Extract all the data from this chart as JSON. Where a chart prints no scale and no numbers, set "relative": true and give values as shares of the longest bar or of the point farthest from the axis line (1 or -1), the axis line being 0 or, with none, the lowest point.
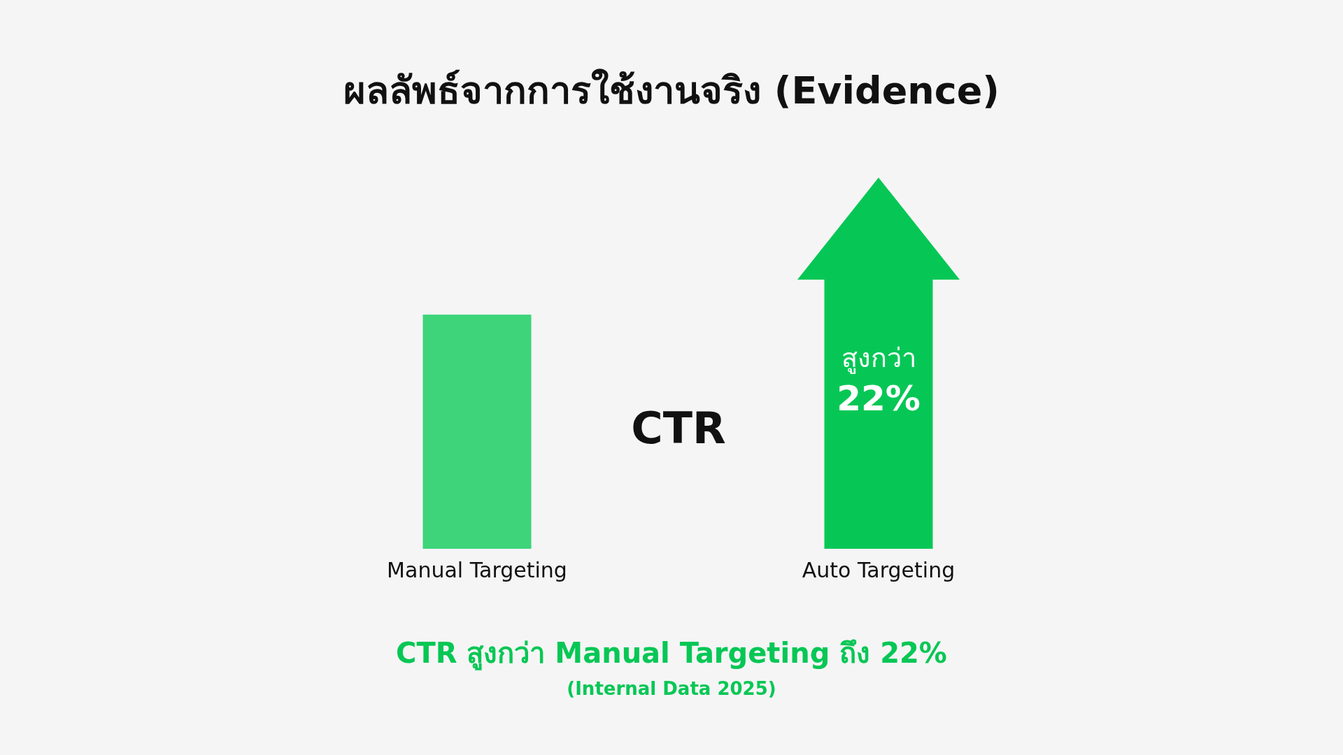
{
  "chart_data": {
    "type": "bar",
    "title": "ผลลัพธ์จากการใช้งานจริง (Evidence)",
    "ylabel": "CTR",
    "relative": true,
    "categories": [
      "Manual Targeting",
      "Auto Targeting"
    ],
    "values": [
      0.87,
      1
    ],
    "colors": [
      "#3dd47a",
      "#06c755"
    ],
    "annotations": [
      "สูงกว่า 22%",
      "CTR สูงกว่า Manual Targeting ถึง 22%",
      "(Internal Data 2025)"
    ]
  }
}
